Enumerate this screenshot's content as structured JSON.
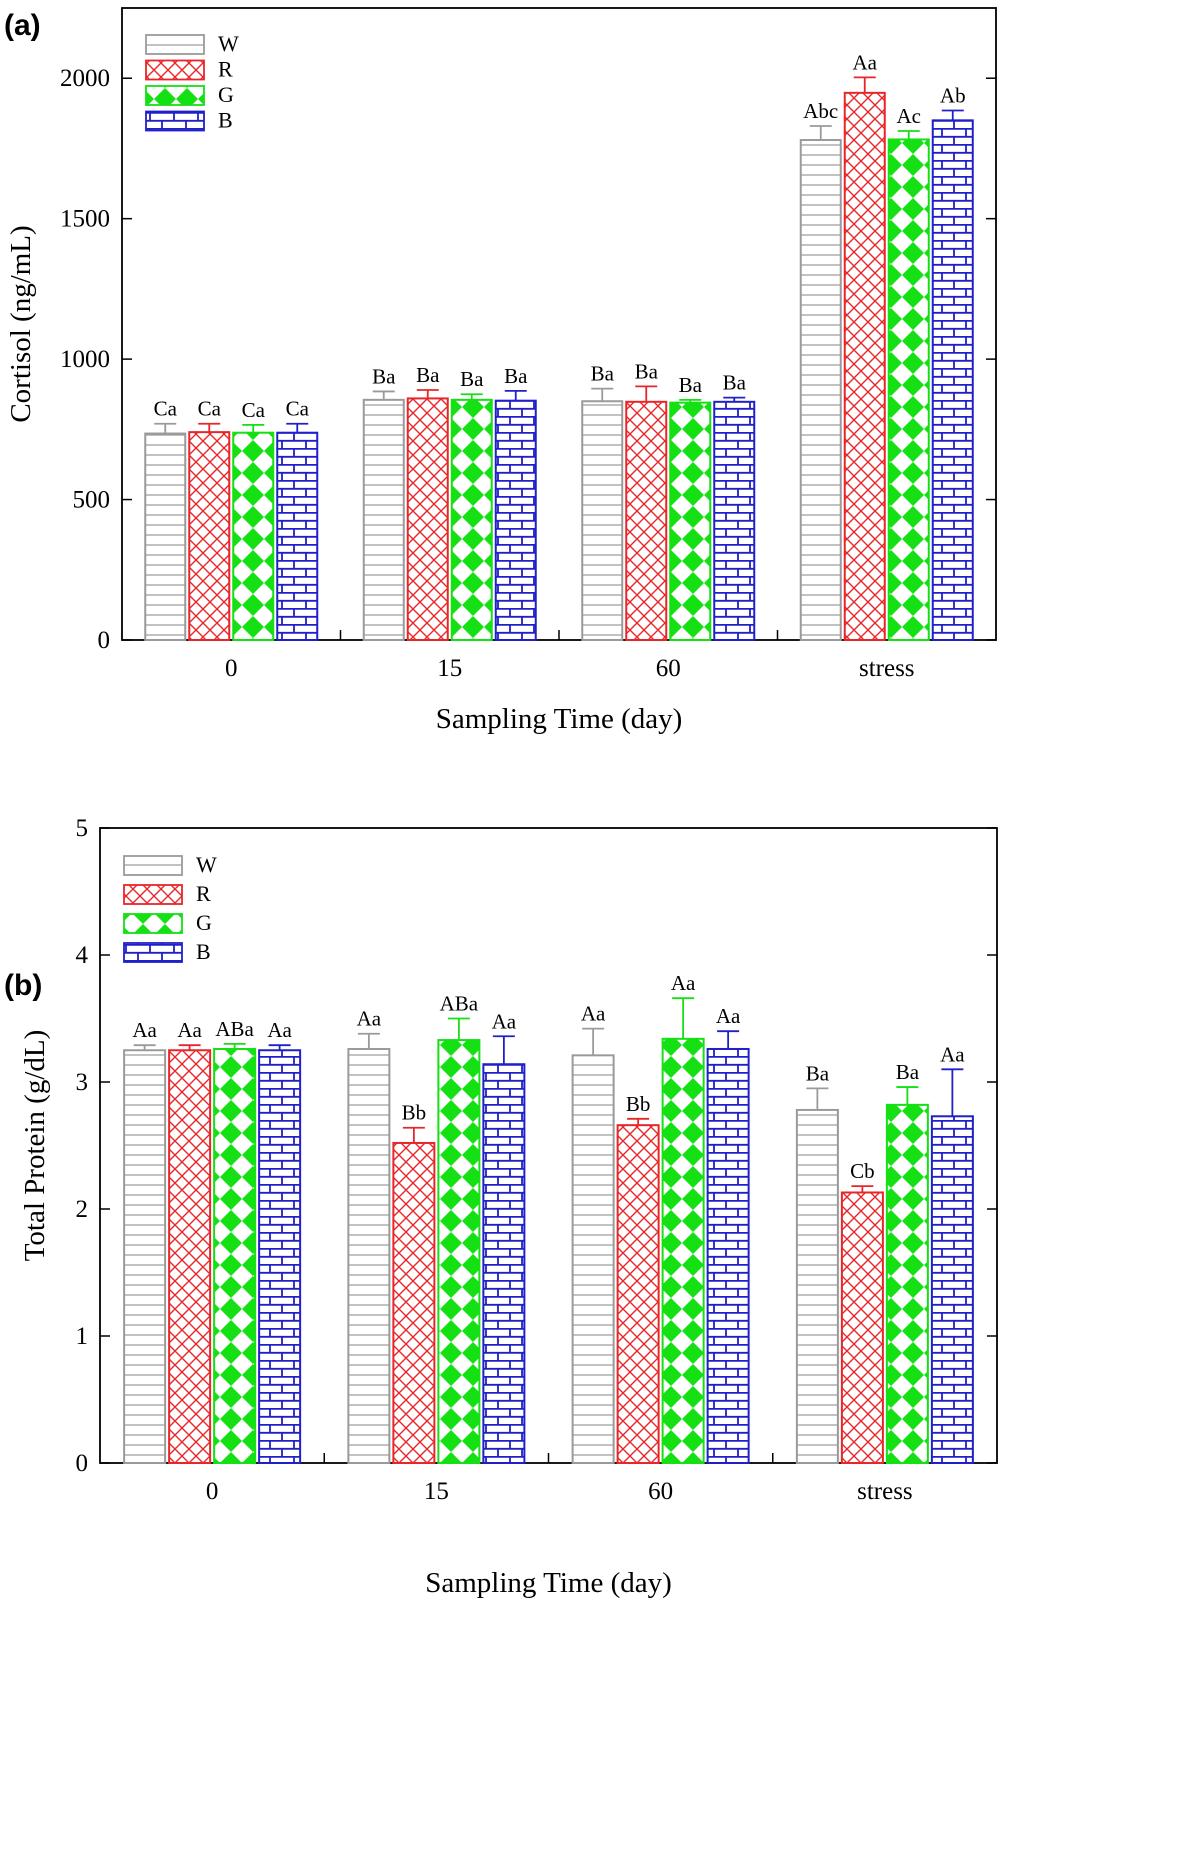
{
  "figure": {
    "panels": [
      "(a)",
      "(b)"
    ]
  },
  "colors": {
    "W": "#9a9a9a",
    "R": "#e8262a",
    "G": "#14e014",
    "B": "#2020c8"
  },
  "chart_data": [
    {
      "type": "bar",
      "panel": "(a)",
      "title": "",
      "xlabel": "Sampling Time (day)",
      "ylabel": "Cortisol (ng/mL)",
      "ylim": [
        0,
        2250
      ],
      "yticks": [
        0,
        500,
        1000,
        1500,
        2000
      ],
      "categories": [
        "0",
        "15",
        "60",
        "stress"
      ],
      "legend": {
        "placement": "top-left",
        "entries": [
          "W",
          "R",
          "G",
          "B"
        ]
      },
      "series": [
        {
          "name": "W",
          "values": [
            735,
            855,
            850,
            1780
          ],
          "errors": [
            35,
            30,
            45,
            50
          ],
          "labels": [
            "Ca",
            "Ba",
            "Ba",
            "Abc"
          ]
        },
        {
          "name": "R",
          "values": [
            740,
            860,
            848,
            1948
          ],
          "errors": [
            30,
            30,
            55,
            55
          ],
          "labels": [
            "Ca",
            "Ba",
            "Ba",
            "Aa"
          ]
        },
        {
          "name": "G",
          "values": [
            738,
            855,
            845,
            1782
          ],
          "errors": [
            28,
            20,
            10,
            30
          ],
          "labels": [
            "Ca",
            "Ba",
            "Ba",
            "Ac"
          ]
        },
        {
          "name": "B",
          "values": [
            738,
            852,
            848,
            1850
          ],
          "errors": [
            32,
            35,
            15,
            35
          ],
          "labels": [
            "Ca",
            "Ba",
            "Ba",
            "Ab"
          ]
        }
      ]
    },
    {
      "type": "bar",
      "panel": "(b)",
      "title": "",
      "xlabel": "Sampling Time (day)",
      "ylabel": "Total Protein (g/dL)",
      "ylim": [
        0,
        5
      ],
      "yticks": [
        0,
        1,
        2,
        3,
        4,
        5
      ],
      "categories": [
        "0",
        "15",
        "60",
        "stress"
      ],
      "legend": {
        "placement": "top-left",
        "entries": [
          "W",
          "R",
          "G",
          "B"
        ]
      },
      "series": [
        {
          "name": "W",
          "values": [
            3.25,
            3.26,
            3.21,
            2.78
          ],
          "errors": [
            0.04,
            0.12,
            0.21,
            0.17
          ],
          "labels": [
            "Aa",
            "Aa",
            "Aa",
            "Ba"
          ]
        },
        {
          "name": "R",
          "values": [
            3.25,
            2.52,
            2.66,
            2.13
          ],
          "errors": [
            0.04,
            0.12,
            0.05,
            0.05
          ],
          "labels": [
            "Aa",
            "Bb",
            "Bb",
            "Cb"
          ]
        },
        {
          "name": "G",
          "values": [
            3.26,
            3.33,
            3.34,
            2.82
          ],
          "errors": [
            0.04,
            0.17,
            0.32,
            0.14
          ],
          "labels": [
            "ABa",
            "ABa",
            "Aa",
            "Ba"
          ]
        },
        {
          "name": "B",
          "values": [
            3.25,
            3.14,
            3.26,
            2.73
          ],
          "errors": [
            0.04,
            0.22,
            0.14,
            0.37
          ],
          "labels": [
            "Aa",
            "Aa",
            "Aa",
            "Aa"
          ]
        }
      ]
    }
  ]
}
